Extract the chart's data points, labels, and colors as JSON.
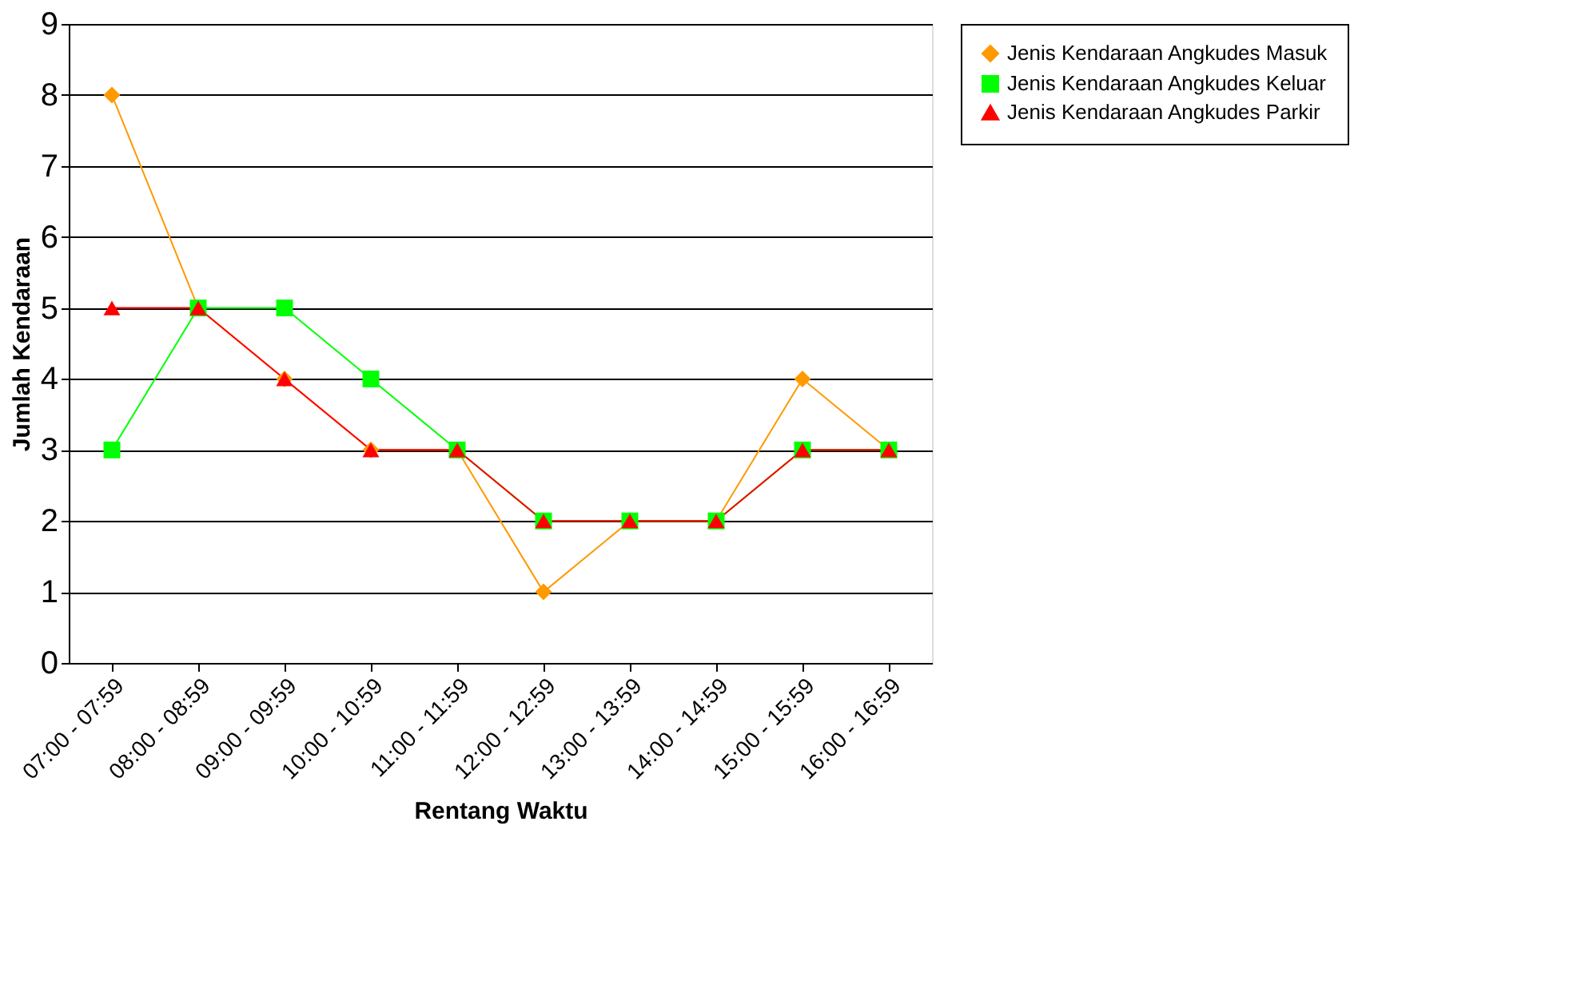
{
  "chart_data": {
    "type": "line",
    "xlabel": "Rentang Waktu",
    "ylabel": "Jumlah Kendaraan",
    "categories": [
      "07:00 - 07:59",
      "08:00 - 08:59",
      "09:00 - 09:59",
      "10:00 - 10:59",
      "11:00 - 11:59",
      "12:00 - 12:59",
      "13:00 - 13:59",
      "14:00 - 14:59",
      "15:00 - 15:59",
      "16:00 - 16:59"
    ],
    "series": [
      {
        "name": "Jenis Kendaraan Angkudes Masuk",
        "color": "#ff9900",
        "marker": "diamond",
        "values": [
          8,
          5,
          4,
          3,
          3,
          1,
          2,
          2,
          4,
          3
        ]
      },
      {
        "name": "Jenis Kendaraan Angkudes Keluar",
        "color": "#00ff00",
        "marker": "square",
        "values": [
          3,
          5,
          5,
          4,
          3,
          2,
          2,
          2,
          3,
          3
        ]
      },
      {
        "name": "Jenis Kendaraan Angkudes Parkir",
        "color": "#ff0000",
        "marker": "triangle",
        "values": [
          5,
          5,
          4,
          3,
          3,
          2,
          2,
          2,
          3,
          3
        ]
      }
    ],
    "ylim": [
      0,
      9
    ],
    "yticks": [
      0,
      1,
      2,
      3,
      4,
      5,
      6,
      7,
      8,
      9
    ],
    "grid": "y",
    "legend": "right",
    "line_style": "solid"
  }
}
